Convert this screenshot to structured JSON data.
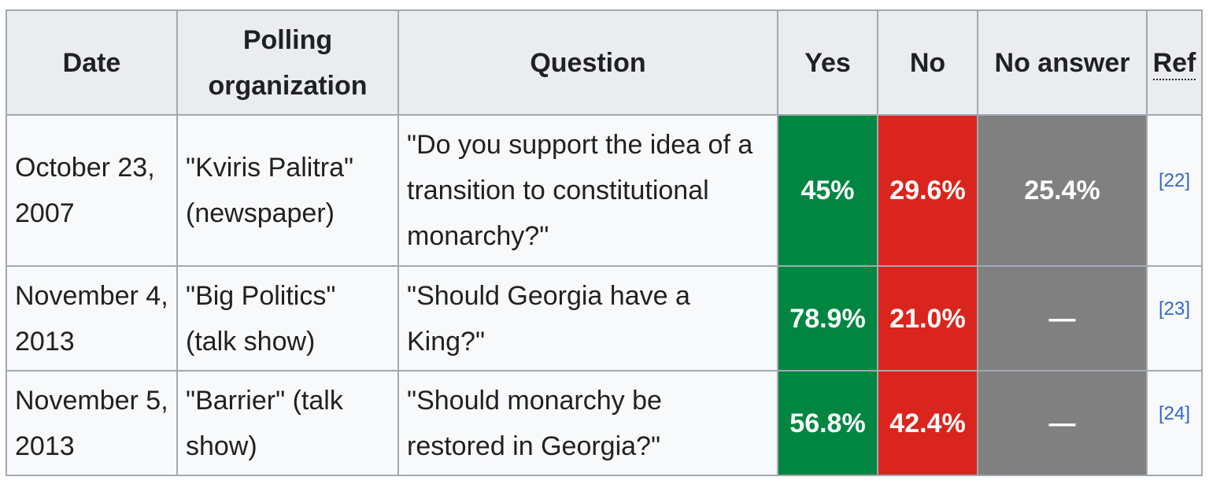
{
  "colors": {
    "yes": "#008641",
    "no": "#d9251d",
    "no_answer": "#808080",
    "header_bg": "#eaecf0",
    "cell_bg": "#f8f9fa",
    "border": "#a2a9b1",
    "link": "#3366cc"
  },
  "headers": {
    "date": "Date",
    "polling_line1": "Polling",
    "polling_line2": "organization",
    "question": "Question",
    "yes": "Yes",
    "no": "No",
    "no_answer": "No answer",
    "ref": "Ref"
  },
  "rows": [
    {
      "date_line1": "October 23,",
      "date_line2": "2007",
      "org_line1": "\"Kviris Palitra\"",
      "org_line2": "(newspaper)",
      "question_line1": "\"Do you support the idea of a",
      "question_line2": "transition to constitutional",
      "question_line3": "monarchy?\"",
      "yes": "45%",
      "no": "29.6%",
      "no_answer": "25.4%",
      "ref": "[22]"
    },
    {
      "date_line1": "November 4,",
      "date_line2": "2013",
      "org_line1": "\"Big Politics\"",
      "org_line2": "(talk show)",
      "question_line1": "\"Should Georgia have a",
      "question_line2": "King?\"",
      "yes": "78.9%",
      "no": "21.0%",
      "no_answer": "—",
      "ref": "[23]"
    },
    {
      "date_line1": "November 5,",
      "date_line2": "2013",
      "org_line1": "\"Barrier\" (talk",
      "org_line2": "show)",
      "question_line1": "\"Should monarchy be",
      "question_line2": "restored in Georgia?\"",
      "yes": "56.8%",
      "no": "42.4%",
      "no_answer": "—",
      "ref": "[24]"
    }
  ]
}
